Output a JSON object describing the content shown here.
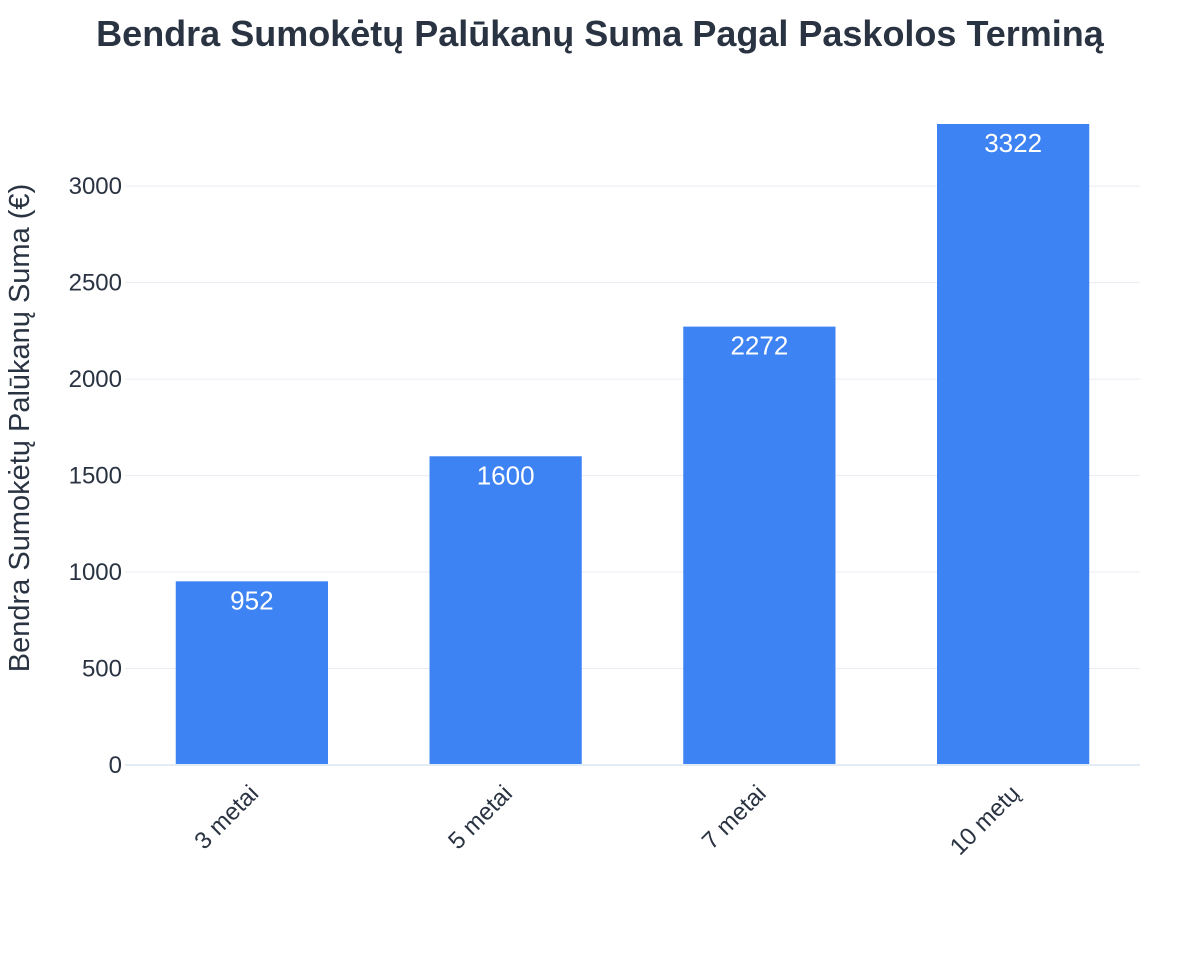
{
  "chart_data": {
    "type": "bar",
    "title": "Bendra Sumokėtų Palūkanų Suma Pagal Paskolos Terminą",
    "xlabel": "",
    "ylabel": "Bendra Sumokėtų Palūkanų Suma (€)",
    "categories": [
      "3 metai",
      "5 metai",
      "7 metai",
      "10 metų"
    ],
    "values": [
      952,
      1600,
      2272,
      3322
    ],
    "data_labels": [
      "952",
      "1600",
      "2272",
      "3322"
    ],
    "yticks": [
      0,
      500,
      1000,
      1500,
      2000,
      2500,
      3000
    ],
    "ytick_labels": [
      "0",
      "500",
      "1000",
      "1500",
      "2000",
      "2500",
      "3000"
    ],
    "ylim": [
      0,
      3322
    ],
    "grid": true,
    "bar_color": "#3e83f4",
    "label_color": "#ffffff",
    "text_color": "#2a3342"
  }
}
